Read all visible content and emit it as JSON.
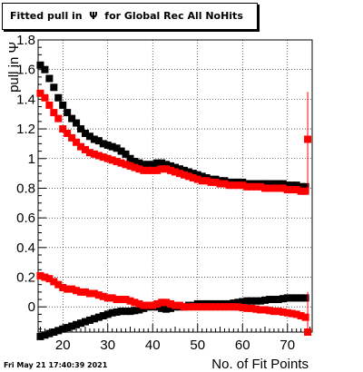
{
  "title": "Fitted pull in  Ψ  for Global Rec All NoHits",
  "timestamp": "Fri May 21 17:40:39 2021",
  "chart_data": {
    "type": "scatter",
    "title": "Fitted pull in  Ψ  for Global Rec All NoHits",
    "xlabel": "No. of Fit Points",
    "ylabel": "pull in  Ψ",
    "xlim": [
      14.5,
      75.5
    ],
    "ylim": [
      -0.17,
      1.8
    ],
    "xticks": [
      20,
      30,
      40,
      50,
      60,
      70
    ],
    "yticks": [
      0,
      0.2,
      0.4,
      0.6,
      0.8,
      1,
      1.2,
      1.4,
      1.6,
      1.8
    ],
    "ytick_labels": [
      "0",
      "0.2",
      "0.4",
      "0.6",
      "0.8",
      "1",
      "1.2",
      "1.4",
      "1.6",
      "1.8"
    ],
    "grid": true,
    "x": [
      15,
      16,
      17,
      18,
      19,
      20,
      21,
      22,
      23,
      24,
      25,
      26,
      27,
      28,
      29,
      30,
      31,
      32,
      33,
      34,
      35,
      36,
      37,
      38,
      39,
      40,
      41,
      42,
      43,
      44,
      45,
      46,
      47,
      48,
      49,
      50,
      51,
      52,
      53,
      54,
      55,
      56,
      57,
      58,
      59,
      60,
      61,
      62,
      63,
      64,
      65,
      66,
      67,
      68,
      69,
      70,
      71,
      72,
      73,
      74
    ],
    "series": [
      {
        "color": "#000000",
        "marker": "square",
        "values": [
          1.63,
          1.6,
          1.54,
          1.48,
          1.41,
          1.36,
          1.31,
          1.27,
          1.24,
          1.2,
          1.17,
          1.15,
          1.13,
          1.12,
          1.1,
          1.09,
          1.08,
          1.07,
          1.05,
          1.03,
          1.0,
          0.98,
          0.97,
          0.96,
          0.96,
          0.96,
          0.97,
          0.97,
          0.96,
          0.95,
          0.94,
          0.93,
          0.92,
          0.91,
          0.9,
          0.89,
          0.88,
          0.87,
          0.86,
          0.86,
          0.85,
          0.85,
          0.84,
          0.84,
          0.84,
          0.84,
          0.83,
          0.83,
          0.83,
          0.83,
          0.83,
          0.83,
          0.83,
          0.83,
          0.83,
          0.82,
          0.82,
          0.82,
          0.81,
          0.81
        ]
      },
      {
        "color": "#ff0000",
        "marker": "square",
        "values": [
          1.44,
          1.41,
          1.36,
          1.31,
          1.27,
          1.2,
          1.17,
          1.14,
          1.11,
          1.08,
          1.06,
          1.04,
          1.03,
          1.02,
          1.01,
          1.0,
          0.99,
          0.98,
          0.97,
          0.96,
          0.95,
          0.94,
          0.93,
          0.92,
          0.92,
          0.92,
          0.92,
          0.93,
          0.93,
          0.92,
          0.91,
          0.9,
          0.89,
          0.88,
          0.87,
          0.86,
          0.85,
          0.85,
          0.84,
          0.84,
          0.83,
          0.83,
          0.82,
          0.82,
          0.82,
          0.82,
          0.81,
          0.81,
          0.81,
          0.81,
          0.8,
          0.8,
          0.8,
          0.8,
          0.8,
          0.79,
          0.79,
          0.79,
          0.78,
          0.78
        ]
      },
      {
        "color": "#000000",
        "marker": "square",
        "values": [
          -0.2,
          -0.19,
          -0.18,
          -0.17,
          -0.16,
          -0.15,
          -0.14,
          -0.13,
          -0.12,
          -0.11,
          -0.1,
          -0.09,
          -0.08,
          -0.07,
          -0.06,
          -0.05,
          -0.04,
          -0.035,
          -0.03,
          -0.03,
          -0.03,
          -0.025,
          -0.02,
          -0.01,
          0.0,
          0.0,
          0.0,
          -0.01,
          -0.015,
          -0.01,
          0.0,
          0.0,
          0.0,
          0.01,
          0.01,
          0.02,
          0.02,
          0.02,
          0.02,
          0.02,
          0.02,
          0.02,
          0.02,
          0.025,
          0.03,
          0.035,
          0.04,
          0.04,
          0.04,
          0.04,
          0.045,
          0.05,
          0.05,
          0.05,
          0.055,
          0.06,
          0.06,
          0.06,
          0.06,
          0.06
        ]
      },
      {
        "color": "#ff0000",
        "marker": "square",
        "values": [
          0.21,
          0.2,
          0.19,
          0.17,
          0.15,
          0.13,
          0.12,
          0.12,
          0.11,
          0.1,
          0.1,
          0.09,
          0.09,
          0.08,
          0.07,
          0.06,
          0.06,
          0.05,
          0.05,
          0.05,
          0.04,
          0.03,
          0.02,
          0.01,
          0.01,
          0.01,
          0.02,
          0.03,
          0.03,
          0.02,
          0.01,
          0.01,
          0.0,
          0.0,
          0.0,
          0.0,
          0.0,
          0.0,
          0.0,
          0.0,
          0.0,
          0.0,
          0.0,
          0.0,
          0.0,
          -0.005,
          -0.01,
          -0.01,
          -0.015,
          -0.02,
          -0.02,
          -0.025,
          -0.03,
          -0.03,
          -0.035,
          -0.04,
          -0.045,
          -0.05,
          -0.06,
          -0.07
        ]
      }
    ],
    "outlier_points": [
      {
        "x": 74.5,
        "y": 1.13,
        "err_low": 0.8,
        "err_high": 1.45,
        "color": "#ff0000"
      },
      {
        "x": 74.5,
        "y": -0.17,
        "err_low": -0.17,
        "err_high": 0.1,
        "color": "#ff0000"
      }
    ]
  }
}
